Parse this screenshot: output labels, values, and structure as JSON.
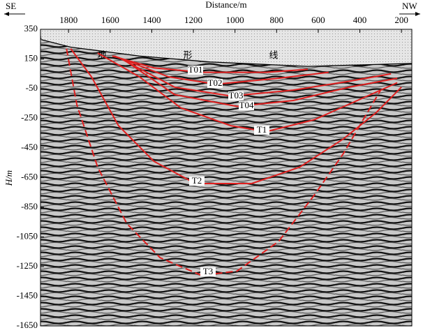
{
  "chart_data": {
    "type": "line",
    "x_label": "Distance/m",
    "y_label": "H/m",
    "left_label": "SE",
    "right_label": "NW",
    "xlim": [
      1935,
      150
    ],
    "xticks": [
      1800,
      1600,
      1400,
      1200,
      1000,
      800,
      600,
      400,
      200
    ],
    "ylim": [
      350,
      -1650
    ],
    "yticks": [
      350,
      150,
      -50,
      -250,
      -450,
      -650,
      -850,
      -1050,
      -1250,
      -1450,
      -1650
    ],
    "series": [
      {
        "name": "地形线",
        "color": "#000000",
        "x": [
          1930,
          1790,
          1460,
          1120,
          650,
          150
        ],
        "values": [
          280,
          230,
          170,
          130,
          100,
          120
        ]
      },
      {
        "name": "T01",
        "color": "#e02020",
        "x": [
          1590,
          1390,
          1160,
          850,
          650
        ],
        "values": [
          170,
          90,
          60,
          60,
          80
        ]
      },
      {
        "name": "T02",
        "color": "#e02020",
        "x": [
          1580,
          1320,
          1090,
          790,
          550
        ],
        "values": [
          170,
          30,
          -20,
          20,
          60
        ]
      },
      {
        "name": "T03",
        "color": "#e02020",
        "x": [
          1560,
          1290,
          1020,
          720,
          450,
          250
        ],
        "values": [
          160,
          -40,
          -100,
          -60,
          0,
          50
        ]
      },
      {
        "name": "T04",
        "color": "#e02020",
        "x": [
          1540,
          1290,
          990,
          720,
          450,
          220
        ],
        "values": [
          150,
          -90,
          -170,
          -130,
          -40,
          20
        ]
      },
      {
        "name": "T1",
        "color": "#e02020",
        "x": [
          1660,
          1460,
          1260,
          1020,
          850,
          620,
          380,
          220
        ],
        "values": [
          190,
          30,
          -180,
          -300,
          -340,
          -260,
          -110,
          -10
        ]
      },
      {
        "name": "T2",
        "color": "#e02020",
        "x": [
          1790,
          1690,
          1560,
          1390,
          1190,
          920,
          690,
          480,
          320,
          200
        ],
        "values": [
          220,
          30,
          -300,
          -540,
          -690,
          -690,
          -580,
          -390,
          -210,
          -40
        ]
      },
      {
        "name": "T3",
        "color": "#e02020",
        "dashed": true,
        "x": [
          1810,
          1760,
          1660,
          1520,
          1360,
          1160,
          990,
          790,
          620,
          480,
          380,
          300
        ],
        "values": [
          220,
          -160,
          -580,
          -960,
          -1190,
          -1310,
          -1280,
          -1080,
          -770,
          -490,
          -250,
          -60
        ]
      }
    ]
  }
}
